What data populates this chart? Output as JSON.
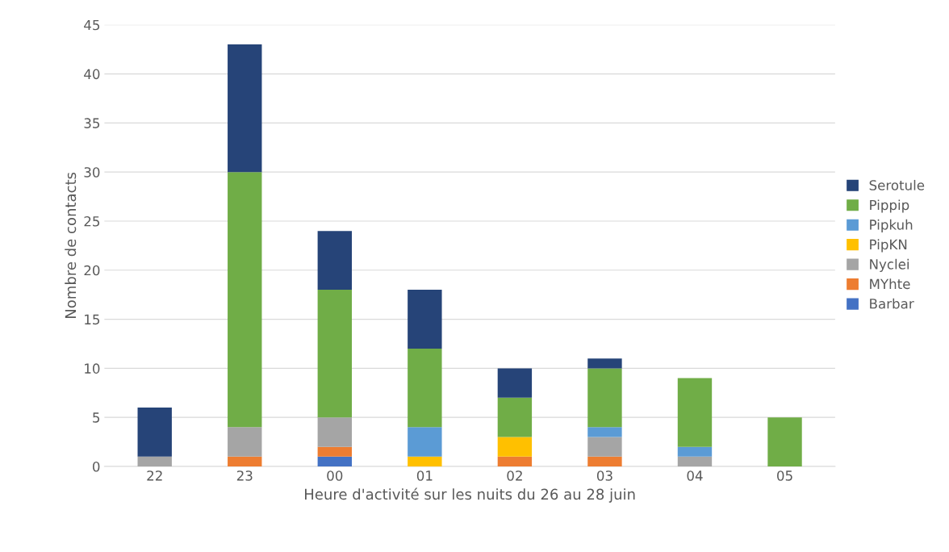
{
  "chart_data": {
    "type": "bar",
    "stacked": true,
    "xlabel": "Heure d'activité sur les nuits du 26 au 28 juin",
    "ylabel": "Nombre de contacts",
    "categories": [
      "22",
      "23",
      "00",
      "01",
      "02",
      "03",
      "04",
      "05"
    ],
    "series": [
      {
        "name": "Barbar",
        "color": "#4472c4",
        "values": [
          0,
          0,
          1,
          0,
          0,
          0,
          0,
          0
        ]
      },
      {
        "name": "MYhte",
        "color": "#ed7d31",
        "values": [
          0,
          1,
          1,
          0,
          1,
          1,
          0,
          0
        ]
      },
      {
        "name": "Nyclei",
        "color": "#a5a5a5",
        "values": [
          1,
          3,
          3,
          0,
          0,
          2,
          1,
          0
        ]
      },
      {
        "name": "PipKN",
        "color": "#ffc000",
        "values": [
          0,
          0,
          0,
          1,
          2,
          0,
          0,
          0
        ]
      },
      {
        "name": "Pipkuh",
        "color": "#5b9bd5",
        "values": [
          0,
          0,
          0,
          3,
          0,
          1,
          1,
          0
        ]
      },
      {
        "name": "Pippip",
        "color": "#70ad47",
        "values": [
          0,
          26,
          13,
          8,
          4,
          6,
          7,
          5
        ]
      },
      {
        "name": "Serotule",
        "color": "#264478",
        "values": [
          5,
          13,
          6,
          6,
          3,
          1,
          0,
          0
        ]
      }
    ],
    "ylim": [
      0,
      45
    ],
    "yticks": [
      0,
      5,
      10,
      15,
      20,
      25,
      30,
      35,
      40,
      45
    ],
    "grid": "y",
    "legend": "right"
  }
}
